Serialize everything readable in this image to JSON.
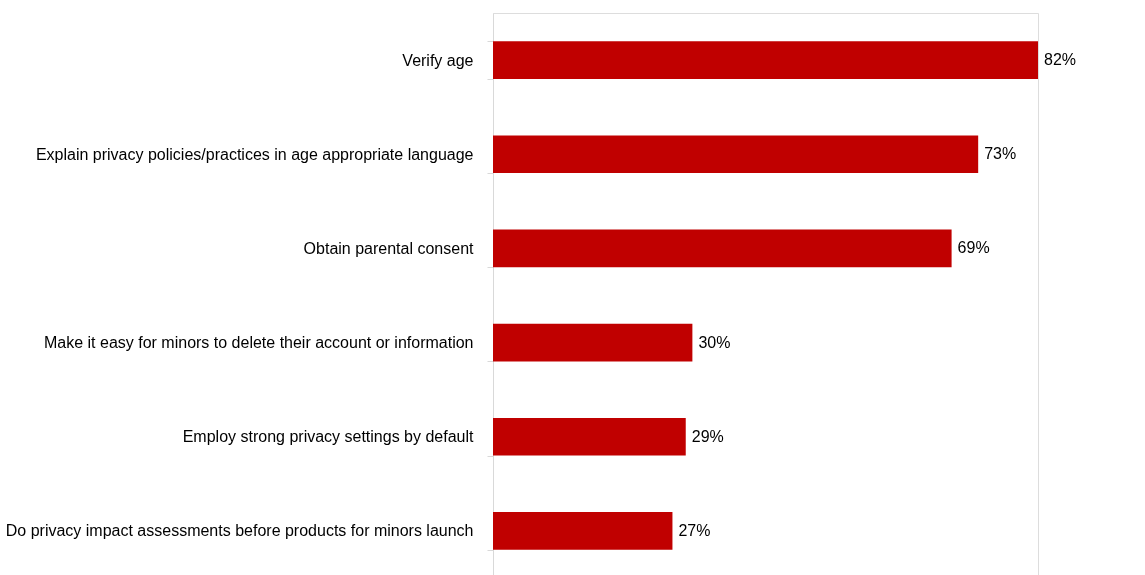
{
  "chart_data": {
    "type": "bar",
    "orientation": "horizontal",
    "categories": [
      "Verify age",
      "Explain privacy policies/practices in age appropriate language",
      "Obtain parental consent",
      "Make it easy for minors to delete their account or information",
      "Employ strong privacy settings by default",
      "Do privacy impact assessments before products for minors launch"
    ],
    "values": [
      82,
      73,
      69,
      30,
      29,
      27
    ],
    "value_labels": [
      "82%",
      "73%",
      "69%",
      "30%",
      "29%",
      "27%"
    ],
    "color": "#c00000",
    "grid": false
  }
}
